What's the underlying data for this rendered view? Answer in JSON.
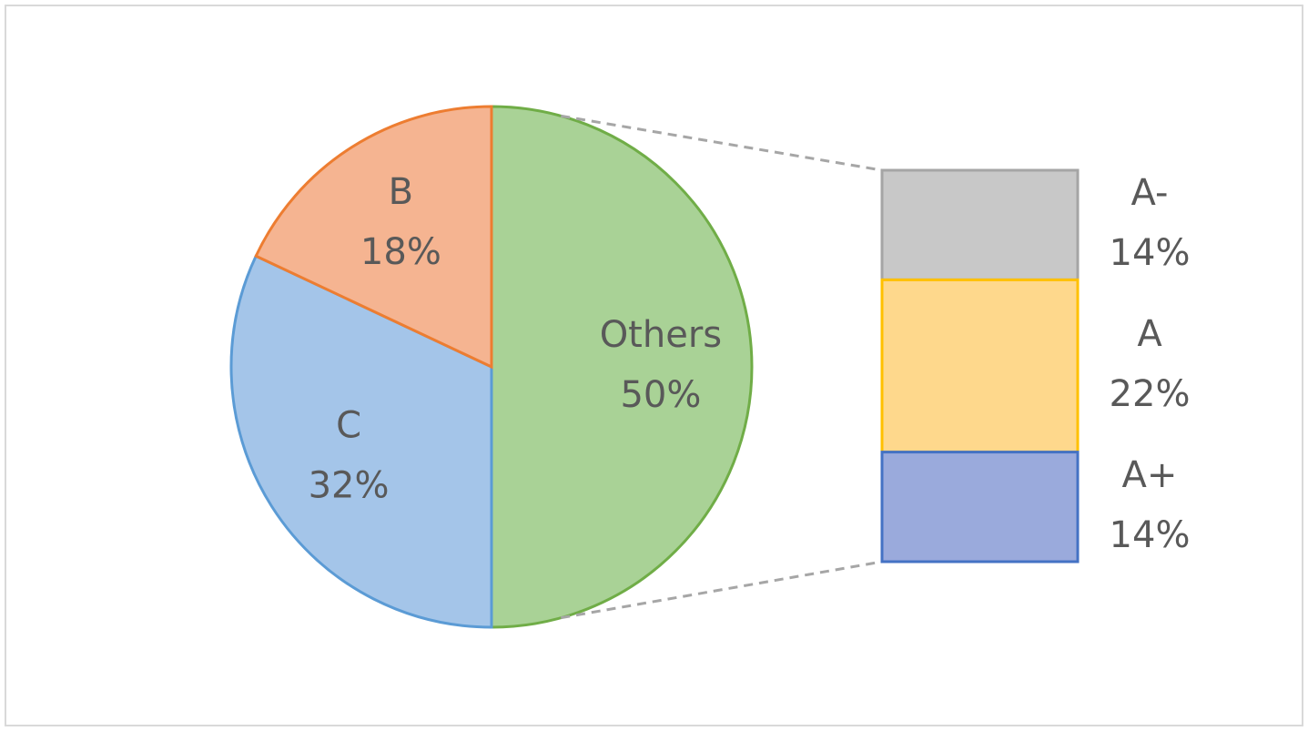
{
  "chart_data": {
    "type": "bar-of-pie",
    "categories": [
      "Others",
      "C",
      "B"
    ],
    "values": [
      50,
      32,
      18
    ],
    "value_labels": [
      "50%",
      "32%",
      "18%"
    ],
    "colors": [
      "#a9d296",
      "#a4c5e9",
      "#f5b491"
    ],
    "edge_colors": [
      "#70ad47",
      "#5b9bd5",
      "#ed7d31"
    ],
    "breakdown": {
      "categories": [
        "A-",
        "A",
        "A+"
      ],
      "values": [
        14,
        22,
        14
      ],
      "value_labels": [
        "14%",
        "22%",
        "14%"
      ],
      "colors": [
        "#c8c8c8",
        "#fed88c",
        "#9aaadc"
      ],
      "edge_colors": [
        "#a5a5a5",
        "#ffc000",
        "#4472c4"
      ]
    }
  }
}
